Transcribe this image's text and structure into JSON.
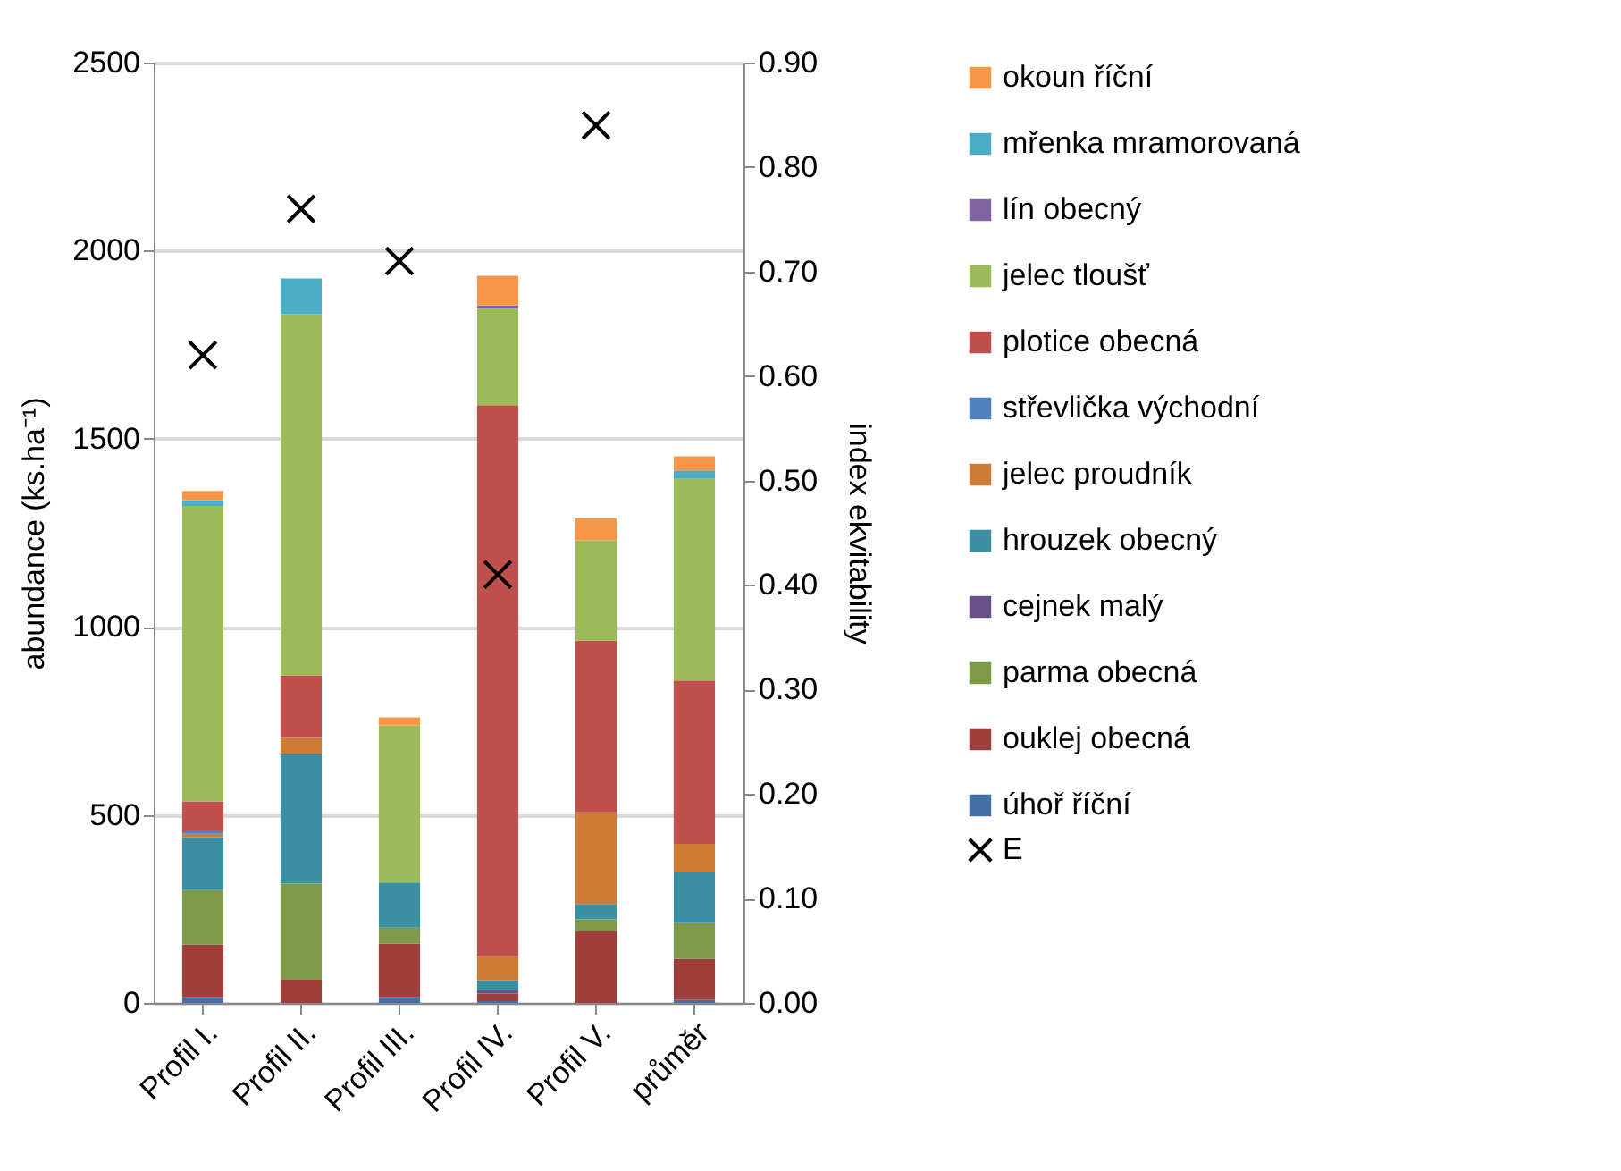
{
  "chart_data": {
    "type": "bar",
    "stacked": true,
    "categories": [
      "Profil I.",
      "Profil II.",
      "Profil III.",
      "Profil IV.",
      "Profil V.",
      "průměr"
    ],
    "ylabel": "abundance (ks.ha⁻¹)",
    "y2label": "index ekvitability",
    "ylim": [
      0,
      2500
    ],
    "yticks": [
      0,
      500,
      1000,
      1500,
      2000,
      2500
    ],
    "y2lim": [
      0,
      0.9
    ],
    "y2ticks": [
      {
        "value": 0,
        "label": "0.00"
      },
      {
        "value": 0.1,
        "label": "0.10"
      },
      {
        "value": 0.2,
        "label": "0.20"
      },
      {
        "value": 0.3,
        "label": "0.30"
      },
      {
        "value": 0.4,
        "label": "0.40"
      },
      {
        "value": 0.5,
        "label": "0.50"
      },
      {
        "value": 0.6,
        "label": "0.60"
      },
      {
        "value": 0.7,
        "label": "0.70"
      },
      {
        "value": 0.8,
        "label": "0.80"
      },
      {
        "value": 0.9,
        "label": "0.90"
      }
    ],
    "grid": "y",
    "legend": "right",
    "series": [
      {
        "name": "úhoř říční",
        "color": "#4470a5",
        "values": [
          15,
          0,
          15,
          5,
          0,
          8
        ]
      },
      {
        "name": "ouklej obecná",
        "color": "#9e3f3c",
        "values": [
          140,
          62,
          143,
          20,
          192,
          109
        ]
      },
      {
        "name": "parma obecná",
        "color": "#7e9a48",
        "values": [
          145,
          255,
          42,
          0,
          30,
          95
        ]
      },
      {
        "name": "cejnek malý",
        "color": "#6a5089",
        "values": [
          0,
          0,
          0,
          8,
          0,
          0
        ]
      },
      {
        "name": "hrouzek obecný",
        "color": "#3a8fa3",
        "values": [
          140,
          345,
          120,
          27,
          41,
          135
        ]
      },
      {
        "name": "jelec proudník",
        "color": "#cd7c37",
        "values": [
          10,
          43,
          0,
          64,
          244,
          76
        ]
      },
      {
        "name": "střevlička východní",
        "color": "#4f81bd",
        "values": [
          6,
          0,
          0,
          0,
          0,
          0
        ]
      },
      {
        "name": "plotice obecná",
        "color": "#c0504d",
        "values": [
          80,
          166,
          0,
          1465,
          456,
          434
        ]
      },
      {
        "name": "jelec tloušť",
        "color": "#9bbb59",
        "values": [
          785,
          960,
          418,
          257,
          267,
          536
        ]
      },
      {
        "name": "lín obecný",
        "color": "#8064a2",
        "values": [
          0,
          0,
          0,
          8,
          0,
          0
        ]
      },
      {
        "name": "mřenka mramorovaná",
        "color": "#4bacc6",
        "values": [
          15,
          95,
          0,
          0,
          0,
          23
        ]
      },
      {
        "name": "okoun říční",
        "color": "#f79646",
        "values": [
          25,
          0,
          21,
          79,
          58,
          37
        ]
      },
      {
        "name": "E",
        "type": "scatter",
        "axis": "y2",
        "marker": "cross",
        "color": "#000000",
        "values": [
          0.62,
          0.76,
          0.71,
          0.41,
          0.84,
          null
        ]
      }
    ]
  }
}
